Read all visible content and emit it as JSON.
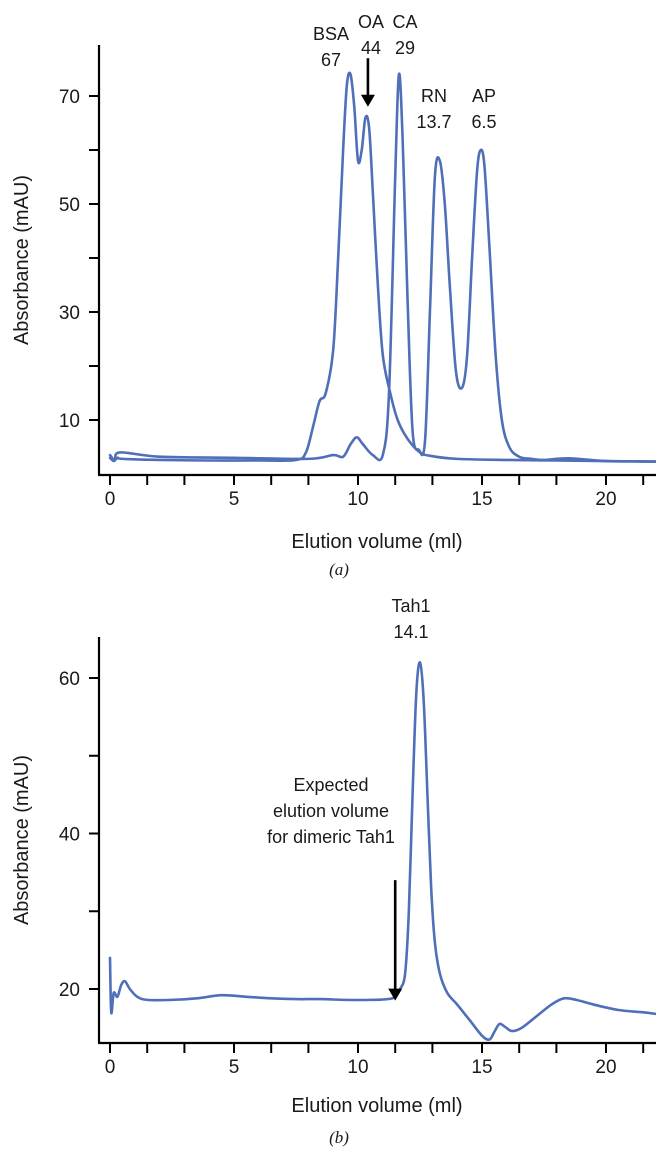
{
  "chart_data": [
    {
      "type": "line",
      "panel_label": "(a)",
      "xlabel": "Elution volume (ml)",
      "ylabel": "Absorbance (mAU)",
      "xlim": [
        -0.5,
        22
      ],
      "ylim": [
        0,
        80
      ],
      "x_ticks": [
        0,
        5,
        10,
        20
      ],
      "x_minor_ticks": [
        1.5,
        3,
        6.5,
        8,
        11.5,
        13,
        15,
        16.5,
        18,
        21.5
      ],
      "x_tick_labels": [
        "0",
        "5",
        "10",
        "15",
        "20"
      ],
      "x_tick_label_values": [
        0,
        5,
        10,
        15,
        20
      ],
      "y_ticks": [
        10,
        30,
        50,
        70
      ],
      "y_minor_ticks": [
        20,
        40,
        60
      ],
      "grid": false,
      "series": [
        {
          "color": "#4f6fb8",
          "x": [
            0,
            0.15,
            0.3,
            0.5,
            2,
            4,
            6,
            7.5,
            7.9,
            8.2,
            8.45,
            8.7,
            9.0,
            9.2,
            9.4,
            9.55,
            9.7,
            9.85,
            10.0,
            10.15,
            10.3,
            10.45,
            10.6,
            10.8,
            11.0,
            11.3,
            11.6,
            12.0,
            12.5,
            13.0,
            14,
            16,
            18,
            20,
            22
          ],
          "y": [
            3,
            2.4,
            3,
            2.8,
            2.6,
            2.5,
            2.5,
            2.6,
            4,
            9,
            13.5,
            15,
            23,
            40,
            60,
            72,
            74,
            68,
            58,
            60,
            66,
            64,
            52,
            35,
            22,
            15,
            10,
            6.5,
            4,
            3.3,
            2.8,
            2.6,
            2.5,
            2.4,
            2.3
          ]
        },
        {
          "color": "#4f6fb8",
          "x": [
            0,
            0.2,
            0.4,
            2,
            5,
            8,
            9.0,
            9.4,
            9.7,
            9.95,
            10.2,
            10.6,
            11.0,
            11.25,
            11.5,
            11.65,
            11.8,
            12.0,
            12.2,
            12.45,
            12.7,
            12.9,
            13.1,
            13.3,
            13.5,
            13.7,
            13.95,
            14.2,
            14.4,
            14.6,
            14.8,
            14.95,
            15.1,
            15.3,
            15.55,
            15.8,
            16.1,
            16.5,
            17,
            17.5,
            18.5,
            20,
            22
          ],
          "y": [
            3.5,
            2.6,
            4,
            3.2,
            3,
            2.8,
            3.5,
            3.2,
            5.5,
            6.8,
            5.5,
            3.5,
            3.5,
            15,
            55,
            74,
            62,
            32,
            8,
            4.5,
            6,
            30,
            55,
            58,
            50,
            35,
            19,
            16,
            22,
            40,
            56,
            60,
            57,
            42,
            22,
            10,
            5,
            3.2,
            2.8,
            2.6,
            2.9,
            2.4,
            2.3
          ]
        }
      ],
      "annotations": [
        {
          "line1": "BSA",
          "line2": "67"
        },
        {
          "line1": "OA",
          "line2": "44"
        },
        {
          "line1": "CA",
          "line2": "29"
        },
        {
          "line1": "RN",
          "line2": "13.7"
        },
        {
          "line1": "AP",
          "line2": "6.5"
        }
      ],
      "arrow": {
        "x": 10.4,
        "y_from": 77,
        "y_to": 68
      }
    },
    {
      "type": "line",
      "panel_label": "(b)",
      "xlabel": "Elution volume (ml)",
      "ylabel": "Absorbance (mAU)",
      "xlim": [
        -0.5,
        22
      ],
      "ylim": [
        13,
        65
      ],
      "x_ticks": [
        0,
        5,
        10,
        15,
        20
      ],
      "x_minor_ticks": [
        1.5,
        3,
        6.5,
        8,
        11.5,
        13,
        16.5,
        18,
        21.5
      ],
      "x_tick_labels": [
        "0",
        "5",
        "10",
        "15",
        "20"
      ],
      "x_tick_label_values": [
        0,
        5,
        10,
        15,
        20
      ],
      "y_ticks": [
        20,
        40,
        60
      ],
      "y_minor_ticks": [
        30,
        50
      ],
      "grid": false,
      "series": [
        {
          "color": "#4f6fb8",
          "x": [
            0,
            0.05,
            0.15,
            0.3,
            0.45,
            0.6,
            0.8,
            1.1,
            1.5,
            2.5,
            3.5,
            4.5,
            5.5,
            6.5,
            7.5,
            8.5,
            9.5,
            10.5,
            11.2,
            11.5,
            11.7,
            11.9,
            12.05,
            12.2,
            12.35,
            12.5,
            12.65,
            12.8,
            12.95,
            13.1,
            13.3,
            13.6,
            14.0,
            14.5,
            15.0,
            15.3,
            15.5,
            15.7,
            15.9,
            16.2,
            16.6,
            17.2,
            17.8,
            18.3,
            18.8,
            19.5,
            20.5,
            21.5,
            22
          ],
          "y": [
            24,
            17,
            19.5,
            19,
            20.5,
            21,
            20,
            19,
            18.6,
            18.6,
            18.8,
            19.2,
            19,
            18.8,
            18.7,
            18.7,
            18.6,
            18.6,
            18.7,
            19,
            20,
            22,
            30,
            45,
            58,
            62,
            57,
            45,
            33,
            26,
            22,
            19.5,
            18,
            16,
            14,
            13.5,
            14.5,
            15.5,
            15.2,
            14.6,
            15,
            16.5,
            18,
            18.8,
            18.6,
            18,
            17.3,
            17,
            16.8
          ]
        }
      ],
      "annotations": [
        {
          "line1": "Tah1",
          "line2": "14.1"
        }
      ],
      "expected_label": [
        "Expected",
        "elution volume",
        "for dimeric Tah1"
      ],
      "arrow": {
        "x": 11.5,
        "y_from": 34,
        "y_to": 18.5
      }
    }
  ]
}
